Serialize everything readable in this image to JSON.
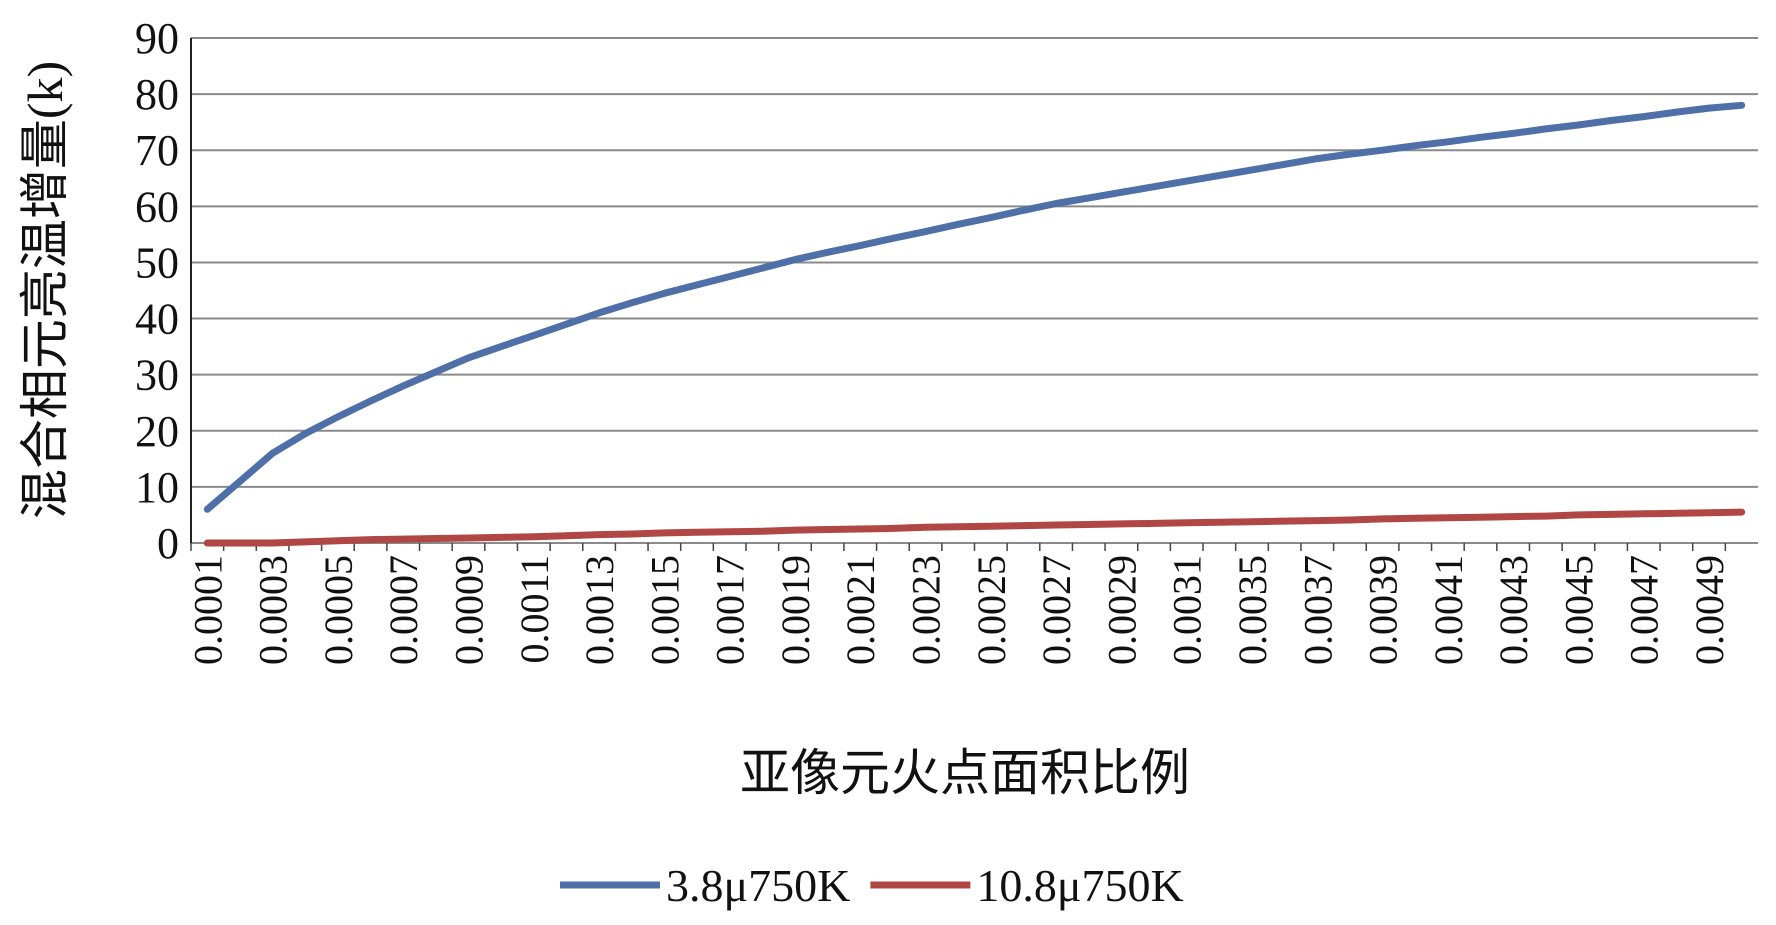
{
  "chart_data": {
    "type": "line",
    "x_label": "亚像元火点面积比例",
    "y_label": "混合相元亮温增量(k)",
    "categories": [
      "0.0001",
      null,
      "0.0003",
      null,
      "0.0005",
      null,
      "0.0007",
      null,
      "0.0009",
      null,
      "0.0011",
      null,
      "0.0013",
      null,
      "0.0015",
      null,
      "0.0017",
      null,
      "0.0019",
      null,
      "0.0021",
      null,
      "0.0023",
      null,
      "0.0025",
      null,
      "0.0027",
      null,
      "0.0029",
      null,
      "0.0031",
      null,
      "0.0035",
      null,
      "0.0037",
      null,
      "0.0039",
      null,
      "0.0041",
      null,
      "0.0043",
      null,
      "0.0045",
      null,
      "0.0047",
      null,
      "0.0049",
      null
    ],
    "series": [
      {
        "name": "3.8μ750K",
        "color": "#4f6fa8",
        "values": [
          6,
          11,
          16,
          19.5,
          22.5,
          25.3,
          28,
          30.5,
          33,
          35,
          37,
          39,
          41,
          42.8,
          44.5,
          46,
          47.5,
          49,
          50.5,
          51.8,
          53,
          54.3,
          55.5,
          56.8,
          58,
          59.3,
          60.5,
          61.5,
          62.5,
          63.5,
          64.5,
          65.5,
          66.5,
          67.5,
          68.5,
          69.3,
          70,
          70.8,
          71.5,
          72.3,
          73,
          73.8,
          74.5,
          75.3,
          76,
          76.8,
          77.5,
          78
        ]
      },
      {
        "name": "10.8μ750K",
        "color": "#b04745",
        "values": [
          0,
          0,
          0,
          0.2,
          0.4,
          0.6,
          0.7,
          0.8,
          0.9,
          1,
          1.1,
          1.3,
          1.5,
          1.6,
          1.8,
          1.9,
          2,
          2.1,
          2.3,
          2.4,
          2.5,
          2.6,
          2.8,
          2.9,
          3,
          3.1,
          3.2,
          3.3,
          3.4,
          3.5,
          3.6,
          3.7,
          3.8,
          3.9,
          4,
          4.1,
          4.3,
          4.4,
          4.5,
          4.6,
          4.7,
          4.8,
          5,
          5.1,
          5.2,
          5.3,
          5.4,
          5.5
        ]
      }
    ],
    "ylim": [
      0,
      90
    ],
    "yticks": [
      0,
      10,
      20,
      30,
      40,
      50,
      60,
      70,
      80,
      90
    ],
    "grid": true,
    "legend": "bottom"
  }
}
